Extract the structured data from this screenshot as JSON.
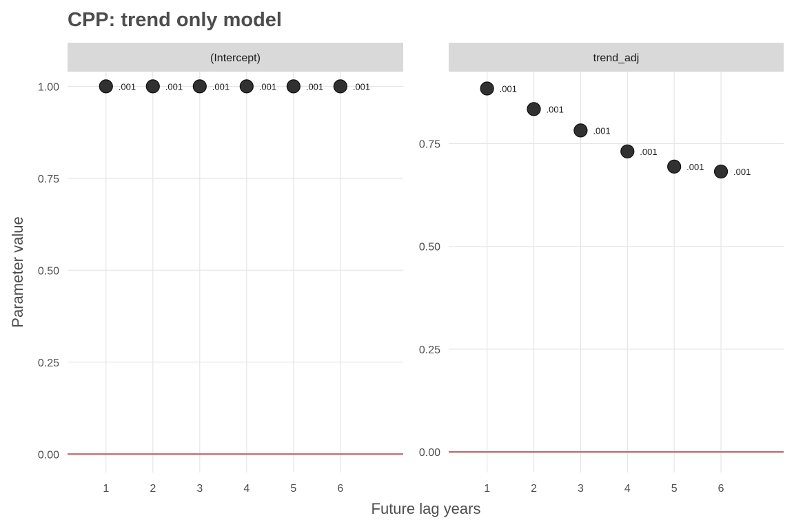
{
  "chart_data": {
    "type": "scatter",
    "title": "CPP: trend only model",
    "xlabel": "Future lag years",
    "ylabel": "Parameter value",
    "grid": true,
    "reference_line": {
      "y": 0,
      "color": "#c07070"
    },
    "point_color": "#262626",
    "x_ticks": [
      "1",
      "2",
      "3",
      "4",
      "5",
      "6"
    ],
    "panels": [
      {
        "strip_label": "(Intercept)",
        "ylim": [
          -0.05,
          1.04
        ],
        "y_ticks": [
          0,
          0.25,
          0.5,
          0.75,
          1
        ],
        "y_tick_labels": [
          "0.00",
          "0.25",
          "0.50",
          "0.75",
          "1.00"
        ],
        "x": [
          1,
          2,
          3,
          4,
          5,
          6
        ],
        "y": [
          1.0,
          1.0,
          1.0,
          1.0,
          1.0,
          1.0
        ],
        "labels": [
          ".001",
          ".001",
          ".001",
          ".001",
          ".001",
          ".001"
        ]
      },
      {
        "strip_label": "trend_adj",
        "ylim": [
          -0.05,
          0.925
        ],
        "y_ticks": [
          0,
          0.25,
          0.5,
          0.75
        ],
        "y_tick_labels": [
          "0.00",
          "0.25",
          "0.50",
          "0.75"
        ],
        "x": [
          1,
          2,
          3,
          4,
          5,
          6
        ],
        "y": [
          0.884,
          0.834,
          0.782,
          0.731,
          0.694,
          0.682
        ],
        "labels": [
          ".001",
          ".001",
          ".001",
          ".001",
          ".001",
          ".001"
        ]
      }
    ]
  }
}
